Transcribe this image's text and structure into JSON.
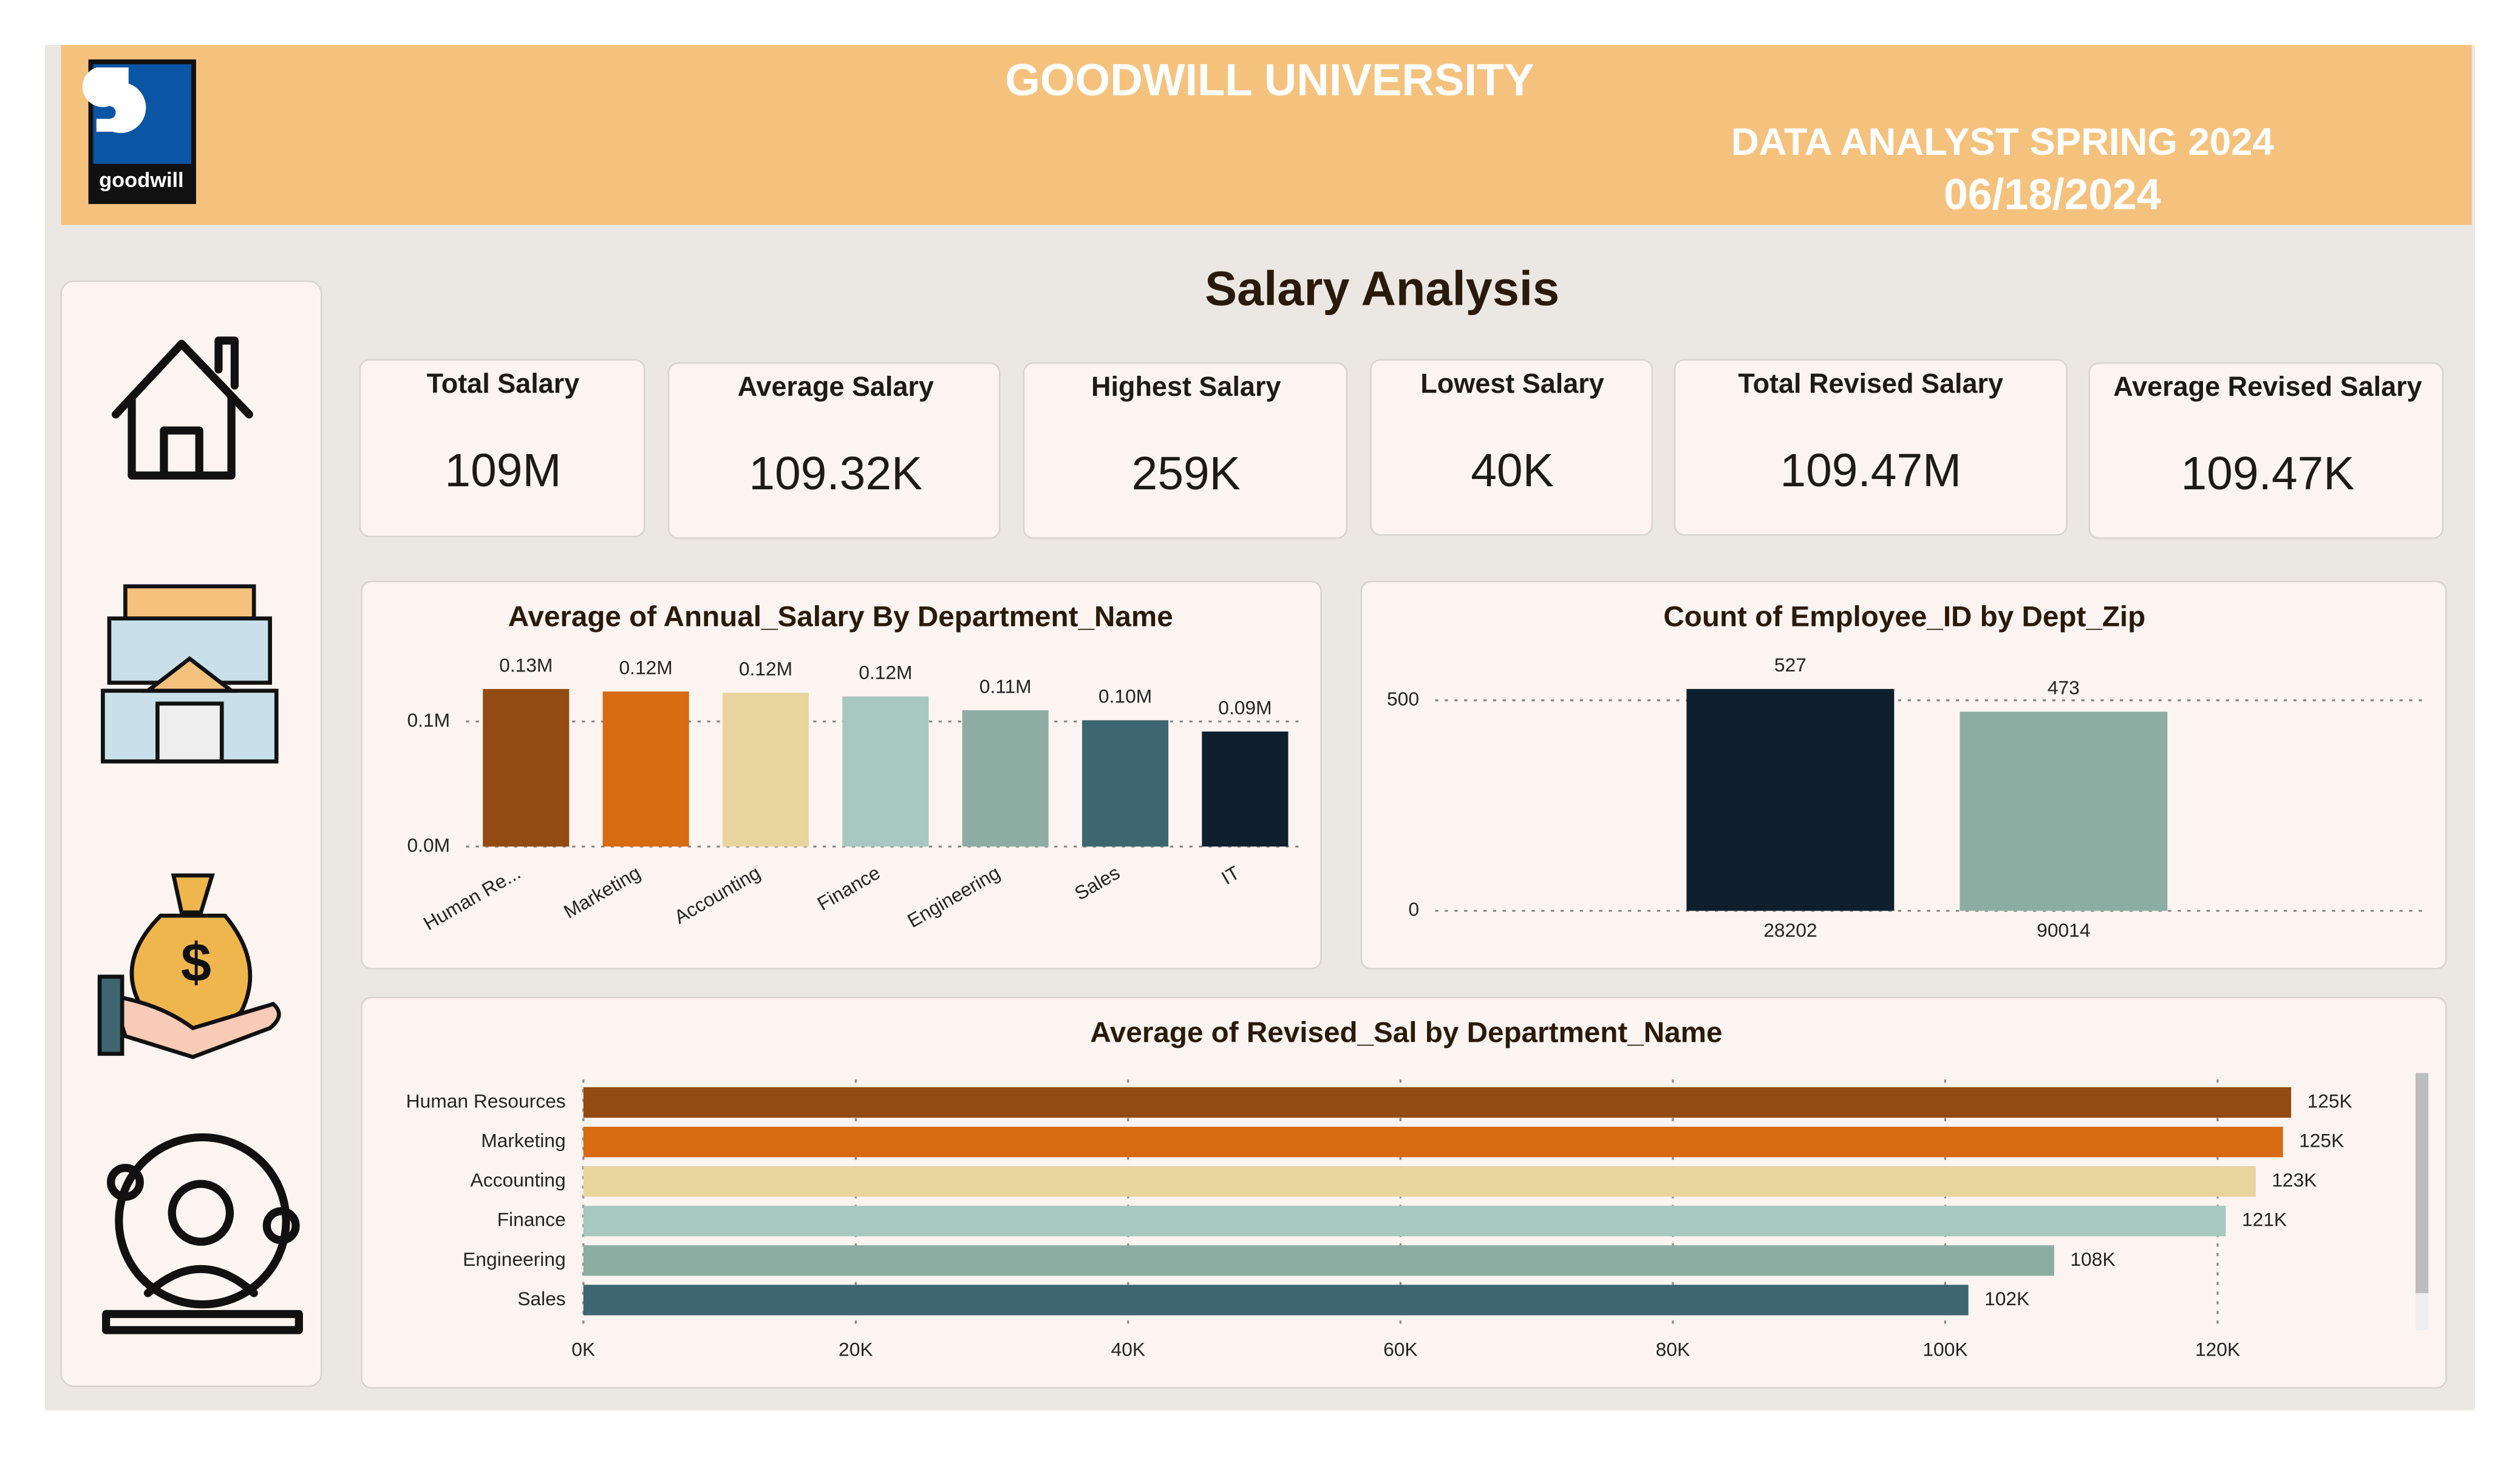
{
  "header": {
    "logo_text": "goodwill",
    "title": "GOODWILL UNIVERSITY",
    "subtitle": "DATA ANALYST SPRING 2024",
    "date": "06/18/2024"
  },
  "page_title": "Salary Analysis",
  "kpis": [
    {
      "label": "Total Salary",
      "value": "109M"
    },
    {
      "label": "Average Salary",
      "value": "109.32K"
    },
    {
      "label": "Highest Salary",
      "value": "259K"
    },
    {
      "label": "Lowest Salary",
      "value": "40K"
    },
    {
      "label": "Total Revised Salary",
      "value": "109.47M"
    },
    {
      "label": "Average Revised Salary",
      "value": "109.47K"
    }
  ],
  "chart_data": [
    {
      "type": "bar",
      "title": "Average of Annual_Salary By Department_Name",
      "categories": [
        "Human Re...",
        "Marketing",
        "Accounting",
        "Finance",
        "Engineering",
        "Sales",
        "IT"
      ],
      "values": [
        0.126,
        0.124,
        0.123,
        0.12,
        0.109,
        0.101,
        0.092
      ],
      "value_labels": [
        "0.13M",
        "0.12M",
        "0.12M",
        "0.12M",
        "0.11M",
        "0.10M",
        "0.09M"
      ],
      "colors": [
        "#934b11",
        "#d86a12",
        "#e8d59e",
        "#a7c7bf",
        "#8dada3",
        "#3d6670",
        "#0f1f2e"
      ],
      "ylim": [
        0,
        0.14
      ],
      "yticks": [
        {
          "value": 0,
          "label": "0.0M"
        },
        {
          "value": 0.1,
          "label": "0.1M"
        }
      ],
      "grid": true
    },
    {
      "type": "bar",
      "title": "Count of Employee_ID by Dept_Zip",
      "categories": [
        "28202",
        "90014"
      ],
      "values": [
        527,
        473
      ],
      "colors": [
        "#0f1f2e",
        "#8dada3"
      ],
      "ylim": [
        0,
        580
      ],
      "yticks": [
        0,
        500
      ],
      "grid": true
    },
    {
      "type": "hbar",
      "title": "Average of Revised_Sal by Department_Name",
      "categories": [
        "Human Resources",
        "Marketing",
        "Accounting",
        "Finance",
        "Engineering",
        "Sales"
      ],
      "values": [
        125400,
        124800,
        122800,
        120600,
        108000,
        101700
      ],
      "value_labels": [
        "125K",
        "125K",
        "123K",
        "121K",
        "108K",
        "102K"
      ],
      "colors": [
        "#934b11",
        "#d86a12",
        "#e8d59e",
        "#a7c7bf",
        "#8dada3",
        "#3d6670"
      ],
      "xlim": [
        0,
        133000
      ],
      "xticks": [
        {
          "value": 0,
          "label": "0K"
        },
        {
          "value": 20000,
          "label": "20K"
        },
        {
          "value": 40000,
          "label": "40K"
        },
        {
          "value": 60000,
          "label": "60K"
        },
        {
          "value": 80000,
          "label": "80K"
        },
        {
          "value": 100000,
          "label": "100K"
        },
        {
          "value": 120000,
          "label": "120K"
        }
      ],
      "grid": true
    }
  ]
}
